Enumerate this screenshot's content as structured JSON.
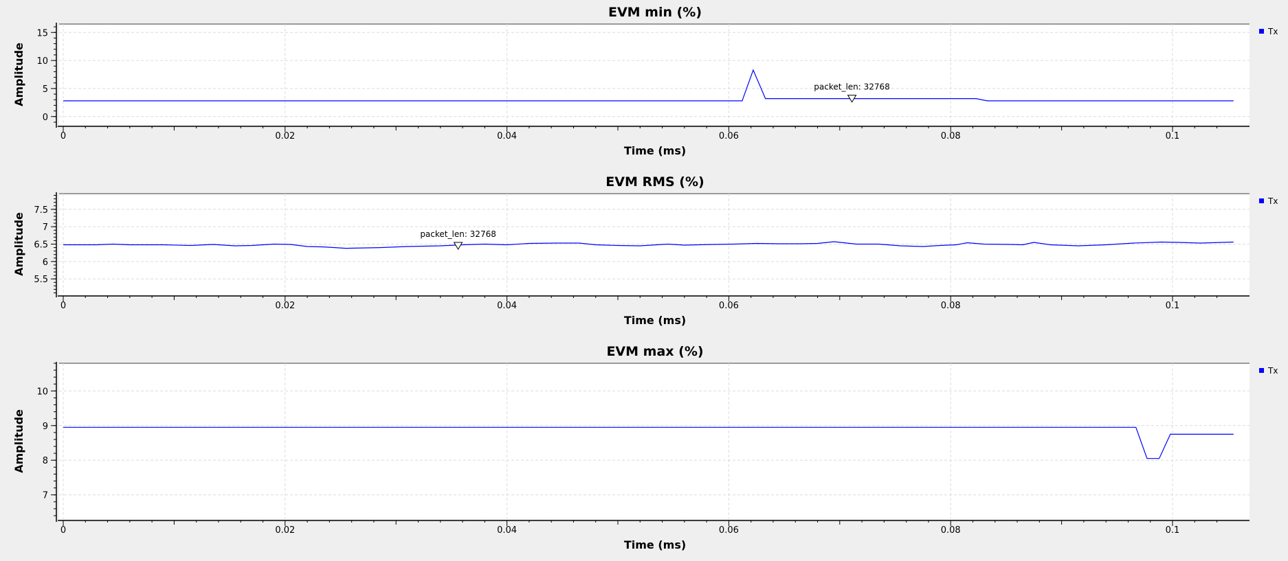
{
  "chart_data": [
    {
      "type": "line",
      "title": "EVM min (%)",
      "xlabel": "Time (ms)",
      "ylabel": "Amplitude",
      "xlim": [
        0,
        0.105
      ],
      "ylim": [
        -1.5,
        16.5
      ],
      "xticks": [
        0,
        0.02,
        0.04,
        0.06,
        0.08,
        0.1
      ],
      "xtick_labels": [
        "0",
        "0.02",
        "0.04",
        "0.06",
        "0.08",
        "0.1"
      ],
      "yticks": [
        0,
        5,
        10,
        15
      ],
      "ytick_labels": [
        "0",
        "5",
        "10",
        "15"
      ],
      "grid": true,
      "legend": "top-right",
      "series": [
        {
          "name": "Tx",
          "color": "#0000ff",
          "x": [
            0,
            0.0612,
            0.0622,
            0.0633,
            0.0823,
            0.0833,
            0.1055
          ],
          "y": [
            2.8,
            2.8,
            8.3,
            3.2,
            3.2,
            2.8,
            2.8
          ]
        }
      ],
      "annotations": [
        {
          "text": "packet_len: 32768",
          "x": 0.0711,
          "y": 3.2
        }
      ]
    },
    {
      "type": "line",
      "title": "EVM RMS (%)",
      "xlabel": "Time (ms)",
      "ylabel": "Amplitude",
      "xlim": [
        0,
        0.105
      ],
      "ylim": [
        5.05,
        7.95
      ],
      "xticks": [
        0,
        0.02,
        0.04,
        0.06,
        0.08,
        0.1
      ],
      "xtick_labels": [
        "0",
        "0.02",
        "0.04",
        "0.06",
        "0.08",
        "0.1"
      ],
      "yticks": [
        5.5,
        6,
        6.5,
        7,
        7.5
      ],
      "ytick_labels": [
        "5.5",
        "6",
        "6.5",
        "7",
        "7.5"
      ],
      "grid": true,
      "legend": "top-right",
      "series": [
        {
          "name": "Tx",
          "color": "#0000ff",
          "x": [
            0,
            0.003,
            0.0045,
            0.006,
            0.009,
            0.0115,
            0.0135,
            0.0155,
            0.017,
            0.019,
            0.0205,
            0.022,
            0.0235,
            0.0255,
            0.0285,
            0.031,
            0.034,
            0.036,
            0.038,
            0.04,
            0.042,
            0.0445,
            0.0465,
            0.048,
            0.05,
            0.052,
            0.0545,
            0.056,
            0.0585,
            0.0605,
            0.0625,
            0.0645,
            0.0665,
            0.068,
            0.0695,
            0.0715,
            0.0735,
            0.0755,
            0.0775,
            0.079,
            0.0805,
            0.0815,
            0.083,
            0.0855,
            0.0865,
            0.0875,
            0.089,
            0.0915,
            0.094,
            0.0965,
            0.099,
            0.1005,
            0.1025,
            0.1055
          ],
          "y": [
            6.48,
            6.48,
            6.5,
            6.48,
            6.48,
            6.46,
            6.49,
            6.45,
            6.46,
            6.5,
            6.49,
            6.43,
            6.42,
            6.38,
            6.4,
            6.43,
            6.45,
            6.48,
            6.5,
            6.48,
            6.52,
            6.53,
            6.53,
            6.48,
            6.46,
            6.45,
            6.5,
            6.47,
            6.49,
            6.5,
            6.52,
            6.51,
            6.51,
            6.52,
            6.57,
            6.5,
            6.5,
            6.45,
            6.43,
            6.46,
            6.48,
            6.54,
            6.5,
            6.49,
            6.48,
            6.55,
            6.48,
            6.45,
            6.48,
            6.53,
            6.56,
            6.55,
            6.53,
            6.56
          ]
        }
      ],
      "annotations": [
        {
          "text": "packet_len: 32768",
          "x": 0.0356,
          "y": 6.45
        }
      ]
    },
    {
      "type": "line",
      "title": "EVM max (%)",
      "xlabel": "Time (ms)",
      "ylabel": "Amplitude",
      "xlim": [
        0,
        0.105
      ],
      "ylim": [
        6.3,
        10.8
      ],
      "xticks": [
        0,
        0.02,
        0.04,
        0.06,
        0.08,
        0.1
      ],
      "xtick_labels": [
        "0",
        "0.02",
        "0.04",
        "0.06",
        "0.08",
        "0.1"
      ],
      "yticks": [
        7,
        8,
        9,
        10
      ],
      "ytick_labels": [
        "7",
        "8",
        "9",
        "10"
      ],
      "grid": true,
      "legend": "top-right",
      "series": [
        {
          "name": "Tx",
          "color": "#0000ff",
          "x": [
            0,
            0.0967,
            0.0977,
            0.0988,
            0.0998,
            0.1008,
            0.1055
          ],
          "y": [
            8.95,
            8.95,
            8.05,
            8.05,
            8.75,
            8.75,
            8.75
          ]
        }
      ],
      "annotations": []
    }
  ]
}
